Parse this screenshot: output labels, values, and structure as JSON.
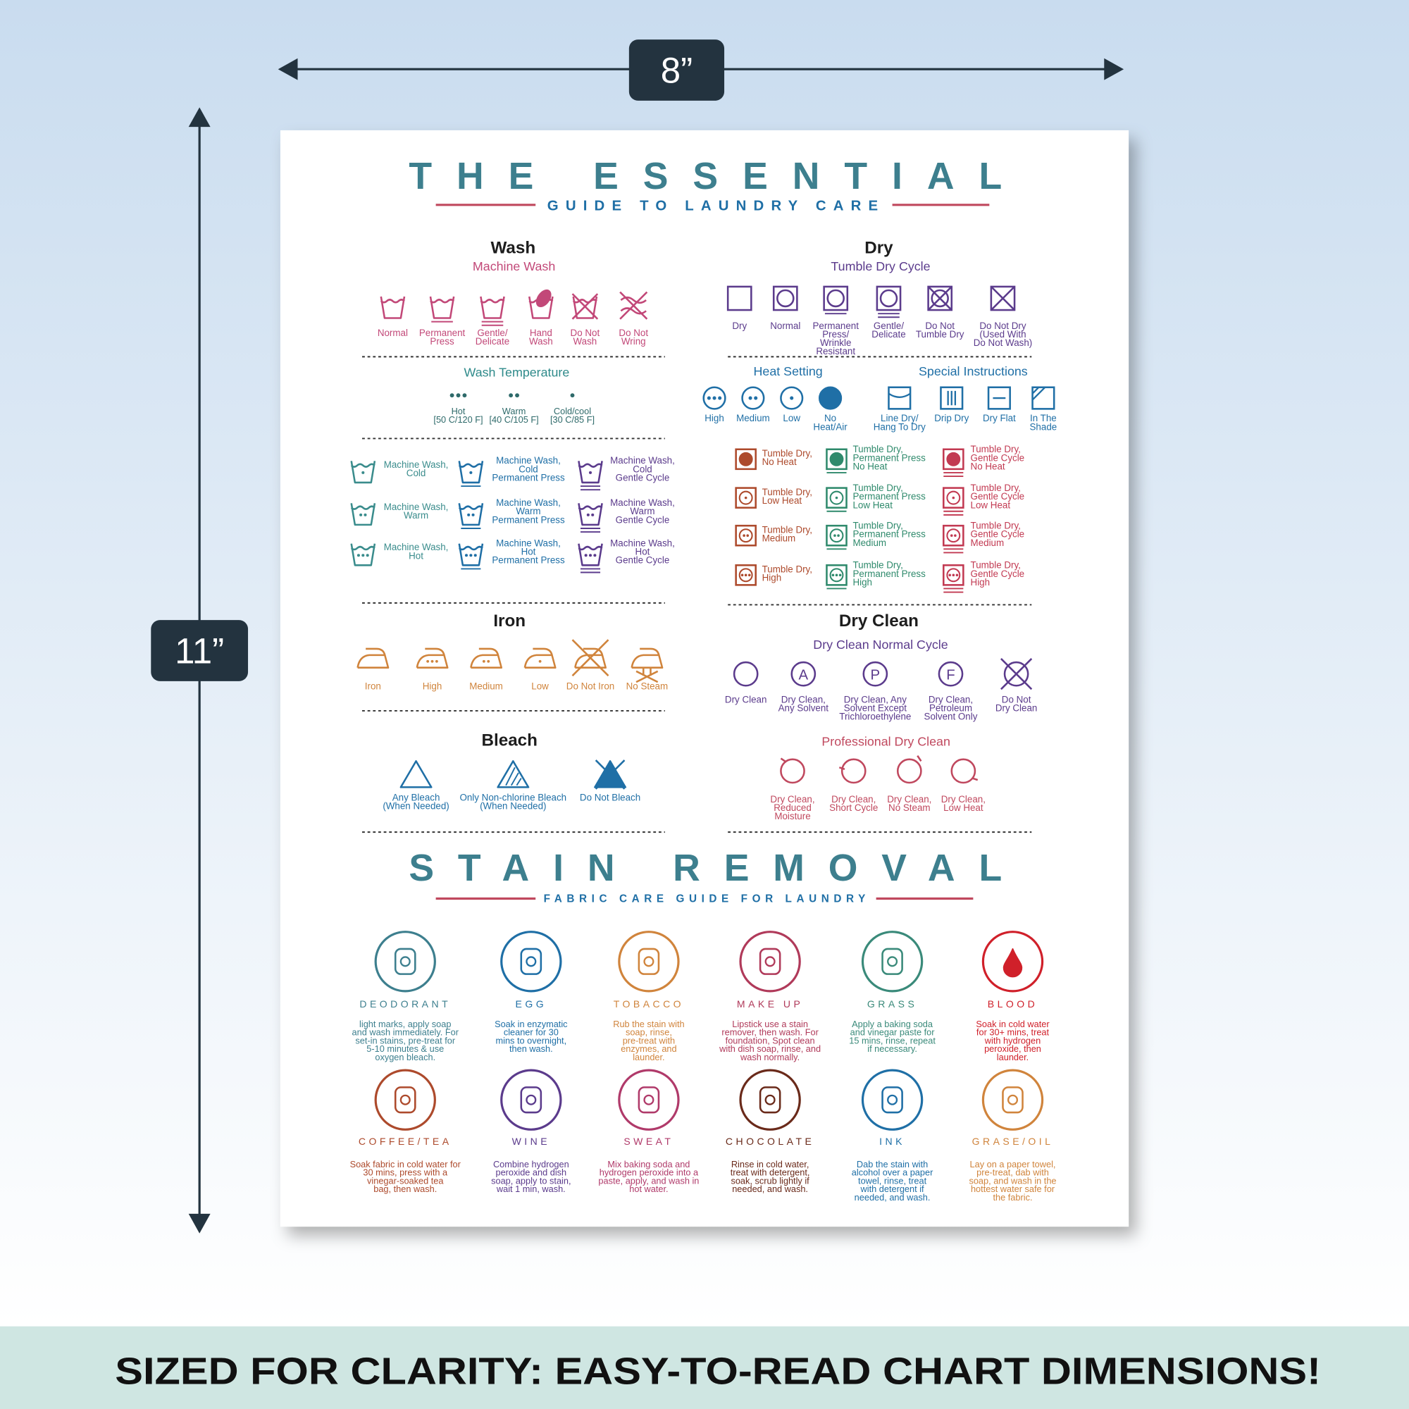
{
  "dimensions": {
    "width": "8”",
    "height": "11”"
  },
  "header": {
    "title": "THE ESSENTIAL",
    "subtitle": "GUIDE TO LAUNDRY CARE"
  },
  "wash": {
    "heading": "Wash",
    "subheading": "Machine Wash",
    "symbols": [
      "Normal",
      "Permanent\nPress",
      "Gentle/\nDelicate",
      "Hand\nWash",
      "Do Not\nWash",
      "Do Not\nWring"
    ]
  },
  "wash_temperature": {
    "heading": "Wash Temperature",
    "symbols": [
      "Hot\n[50 C/120 F]",
      "Warm\n[40 C/105 F]",
      "Cold/cool\n[30 C/85 F]"
    ]
  },
  "machine_wash": {
    "columns": [
      [
        "Machine Wash,\nCold",
        "Machine Wash,\nWarm",
        "Machine Wash,\nHot"
      ],
      [
        "Machine Wash,\nCold\nPermanent Press",
        "Machine Wash,\nWarm\nPermanent Press",
        "Machine Wash,\nHot\nPermanent Press"
      ],
      [
        "Machine Wash,\nCold\nGentle Cycle",
        "Machine Wash,\nWarm\nGentle Cycle",
        "Machine Wash,\nHot\nGentle Cycle"
      ]
    ]
  },
  "iron": {
    "heading": "Iron",
    "symbols": [
      "Iron",
      "High",
      "Medium",
      "Low",
      "Do Not Iron",
      "No Steam"
    ]
  },
  "bleach": {
    "heading": "Bleach",
    "symbols": [
      "Any Bleach\n(When Needed)",
      "Only Non-chlorine Bleach\n(When Needed)",
      "Do Not Bleach"
    ]
  },
  "dry": {
    "heading": "Dry",
    "subheading": "Tumble Dry Cycle",
    "symbols": [
      "Dry",
      "Normal",
      "Permanent\nPress/\nWrinkle\nResistant",
      "Gentle/\nDelicate",
      "Do Not\nTumble Dry",
      "Do Not Dry\n(Used With\nDo Not Wash)"
    ]
  },
  "heat_setting": {
    "heading": "Heat Setting",
    "symbols": [
      "High",
      "Medium",
      "Low",
      "No\nHeat/Air"
    ]
  },
  "special_instructions": {
    "heading": "Special Instructions",
    "symbols": [
      "Line Dry/\nHang To Dry",
      "Drip Dry",
      "Dry Flat",
      "In The\nShade"
    ]
  },
  "tumble_dry": {
    "columns": [
      [
        "Tumble Dry,\nNo Heat",
        "Tumble Dry,\nLow Heat",
        "Tumble Dry,\nMedium",
        "Tumble Dry,\nHigh"
      ],
      [
        "Tumble Dry,\nPermanent Press\nNo Heat",
        "Tumble Dry,\nPermanent Press\nLow Heat",
        "Tumble Dry,\nPermanent Press\nMedium",
        "Tumble Dry,\nPermanent Press\nHigh"
      ],
      [
        "Tumble Dry,\nGentle Cycle\nNo Heat",
        "Tumble Dry,\nGentle Cycle\nLow Heat",
        "Tumble Dry,\nGentle Cycle\nMedium",
        "Tumble Dry,\nGentle Cycle\nHigh"
      ]
    ]
  },
  "dry_clean": {
    "heading": "Dry Clean",
    "subheading": "Dry Clean Normal Cycle",
    "symbols": [
      {
        "label": "Dry Clean"
      },
      {
        "letter": "A",
        "label": "Dry Clean,\nAny Solvent"
      },
      {
        "letter": "P",
        "label": "Dry Clean, Any\nSolvent Except\nTrichloroethylene"
      },
      {
        "letter": "F",
        "label": "Dry Clean,\nPetroleum\nSolvent Only"
      },
      {
        "label": "Do Not\nDry Clean"
      }
    ]
  },
  "professional_dry_clean": {
    "heading": "Professional Dry Clean",
    "symbols": [
      "Dry Clean,\nReduced\nMoisture",
      "Dry Clean,\nShort Cycle",
      "Dry Clean,\nNo Steam",
      "Dry Clean,\nLow Heat"
    ]
  },
  "stain_removal": {
    "title": "STAIN REMOVAL",
    "subtitle": "FABRIC CARE GUIDE FOR LAUNDRY",
    "stains": [
      {
        "name": "DEODORANT",
        "description": "light marks, apply soap\nand wash immediately. For\nset-in stains, pre-treat for\n5-10 minutes & use\noxygen bleach."
      },
      {
        "name": "EGG",
        "description": "Soak in enzymatic\ncleaner for 30\nmins to overnight,\nthen wash."
      },
      {
        "name": "TOBACCO",
        "description": "Rub the stain with\nsoap, rinse,\npre-treat with\nenzymes, and\nlaunder."
      },
      {
        "name": "MAKE UP",
        "description": "Lipstick use a stain\nremover, then wash. For\nfoundation, Spot clean\nwith dish soap, rinse, and\nwash normally."
      },
      {
        "name": "GRASS",
        "description": "Apply a baking soda\nand vinegar paste for\n15 mins, rinse, repeat\nif necessary."
      },
      {
        "name": "BLOOD",
        "description": "Soak in cold water\nfor 30+ mins, treat\nwith hydrogen\nperoxide, then\nlaunder."
      },
      {
        "name": "COFFEE/TEA",
        "description": "Soak fabric in cold water for\n30 mins, press with a\nvinegar-soaked tea\nbag, then wash."
      },
      {
        "name": "WINE",
        "description": "Combine hydrogen\nperoxide and dish\nsoap, apply to stain,\nwait 1 min, wash."
      },
      {
        "name": "SWEAT",
        "description": "Mix baking soda and\nhydrogen peroxide into a\npaste, apply, and wash in\nhot water."
      },
      {
        "name": "CHOCOLATE",
        "description": "Rinse in cold water,\ntreat with detergent,\nsoak, scrub lightly if\nneeded, and wash."
      },
      {
        "name": "INK",
        "description": "Dab the stain with\nalcohol over a paper\ntowel, rinse, treat\nwith detergent if\nneeded, and wash."
      },
      {
        "name": "GRASE/OIL",
        "description": "Lay on a paper towel,\npre-treat, dab with\nsoap, and wash in the\nhottest water safe for\nthe fabric."
      }
    ]
  },
  "footer": {
    "text": "SIZED FOR CLARITY: EASY-TO-READ CHART DIMENSIONS!"
  }
}
